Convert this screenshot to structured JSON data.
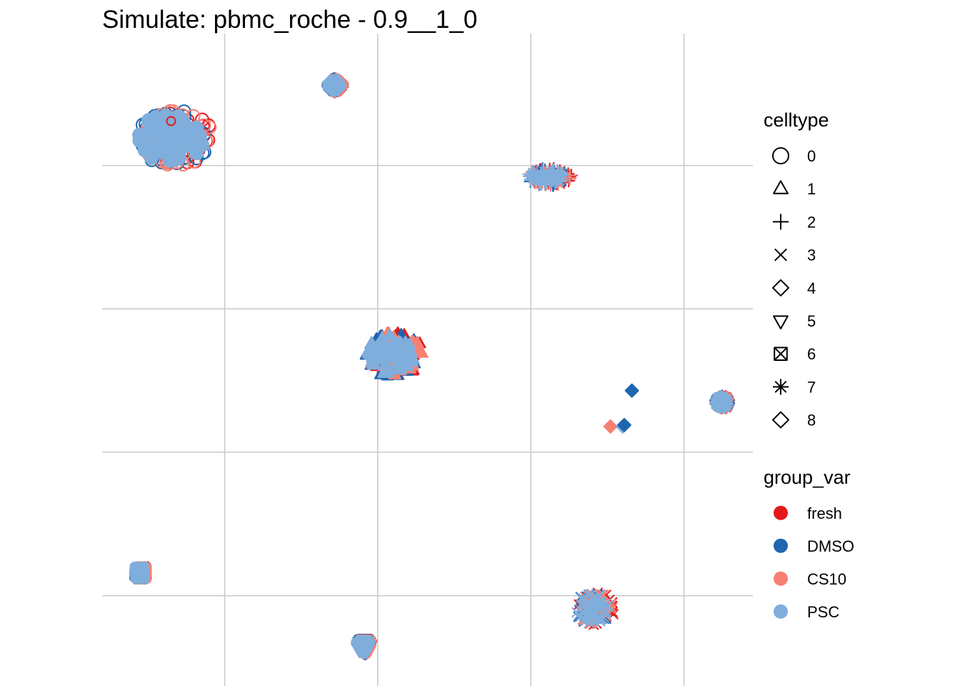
{
  "chart_data": {
    "type": "scatter",
    "title": "Simulate: pbmc_roche - 0.9__1_0",
    "xlabel": "",
    "ylabel": "",
    "axis_labels_shown": false,
    "grid": true,
    "xlim": [
      -0.8,
      3.45
    ],
    "ylim": [
      -0.63,
      3.92
    ],
    "grid_x": [
      0,
      1,
      2,
      3
    ],
    "grid_y": [
      0,
      1,
      2,
      3
    ],
    "legend_position": "right",
    "legends": [
      {
        "title": "celltype",
        "entries": [
          {
            "label": "0",
            "shape": "circle"
          },
          {
            "label": "1",
            "shape": "triangle-up"
          },
          {
            "label": "2",
            "shape": "plus"
          },
          {
            "label": "3",
            "shape": "cross"
          },
          {
            "label": "4",
            "shape": "diamond"
          },
          {
            "label": "5",
            "shape": "triangle-down"
          },
          {
            "label": "6",
            "shape": "square-cross"
          },
          {
            "label": "7",
            "shape": "asterisk"
          },
          {
            "label": "8",
            "shape": "diamond-plus"
          }
        ]
      },
      {
        "title": "group_var",
        "entries": [
          {
            "label": "fresh",
            "color": "#E31A1C"
          },
          {
            "label": "DMSO",
            "color": "#1F65AF"
          },
          {
            "label": "CS10",
            "color": "#F88073"
          },
          {
            "label": "PSC",
            "color": "#7FAEDC"
          }
        ]
      }
    ],
    "clusters": [
      {
        "celltype": "0",
        "x": -0.33,
        "y": 3.19,
        "spread_x": 0.27,
        "spread_y": 0.22
      },
      {
        "celltype": "1",
        "x": 1.1,
        "y": 1.68,
        "spread_x": 0.2,
        "spread_y": 0.18
      },
      {
        "celltype": "2",
        "x": 2.11,
        "y": 2.92,
        "spread_x": 0.16,
        "spread_y": 0.07
      },
      {
        "celltype": "3",
        "x": 2.41,
        "y": -0.09,
        "spread_x": 0.14,
        "spread_y": 0.13
      },
      {
        "celltype": "4",
        "x": 0.72,
        "y": 3.56,
        "spread_x": 0.05,
        "spread_y": 0.05
      },
      {
        "celltype": "5",
        "x": 0.91,
        "y": -0.35,
        "spread_x": 0.05,
        "spread_y": 0.06
      },
      {
        "celltype": "6",
        "x": -0.55,
        "y": 0.16,
        "spread_x": 0.04,
        "spread_y": 0.05
      },
      {
        "celltype": "7",
        "x": 3.25,
        "y": 1.35,
        "spread_x": 0.05,
        "spread_y": 0.05
      }
    ],
    "points": [
      {
        "celltype": "8",
        "group": "DMSO",
        "x": 2.66,
        "y": 1.43
      },
      {
        "celltype": "8",
        "group": "CS10",
        "x": 2.52,
        "y": 1.18
      },
      {
        "celltype": "8",
        "group": "PSC",
        "x": 2.6,
        "y": 1.18
      },
      {
        "celltype": "8",
        "group": "DMSO",
        "x": 2.61,
        "y": 1.19
      },
      {
        "celltype": "0",
        "group": "fresh",
        "x": -0.35,
        "y": 3.31
      }
    ]
  }
}
